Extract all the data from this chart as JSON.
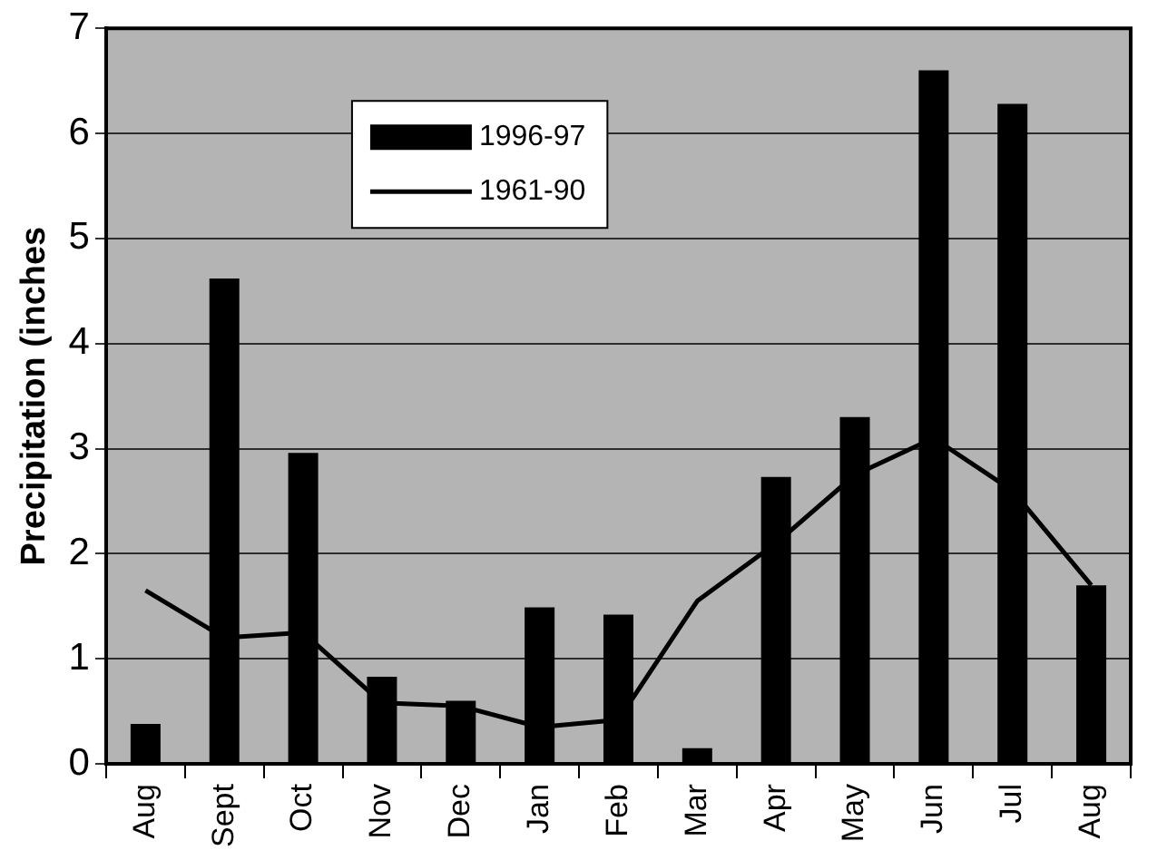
{
  "chart_data": {
    "type": "bar",
    "ylabel": "Precipitation (inches",
    "categories": [
      "Aug",
      "Sept",
      "Oct",
      "Nov",
      "Dec",
      "Jan",
      "Feb",
      "Mar",
      "Apr",
      "May",
      "Jun",
      "Jul",
      "Aug"
    ],
    "series": [
      {
        "name": "1996-97",
        "color": "#000000",
        "values": [
          0.38,
          4.62,
          2.96,
          0.83,
          0.6,
          1.49,
          1.42,
          0.15,
          2.73,
          3.3,
          6.6,
          6.28,
          1.7
        ]
      },
      {
        "name": "1961-90",
        "type": "line",
        "color": "#000000",
        "values": [
          1.65,
          1.2,
          1.25,
          0.58,
          0.55,
          0.35,
          0.42,
          1.55,
          2.1,
          2.75,
          3.1,
          2.6,
          1.7
        ]
      }
    ],
    "ylim": [
      0,
      7
    ],
    "yticks": [
      0,
      1,
      2,
      3,
      4,
      5,
      6,
      7
    ],
    "grid": "y",
    "legend": "top left",
    "marker": "none",
    "line_style": "solid"
  }
}
